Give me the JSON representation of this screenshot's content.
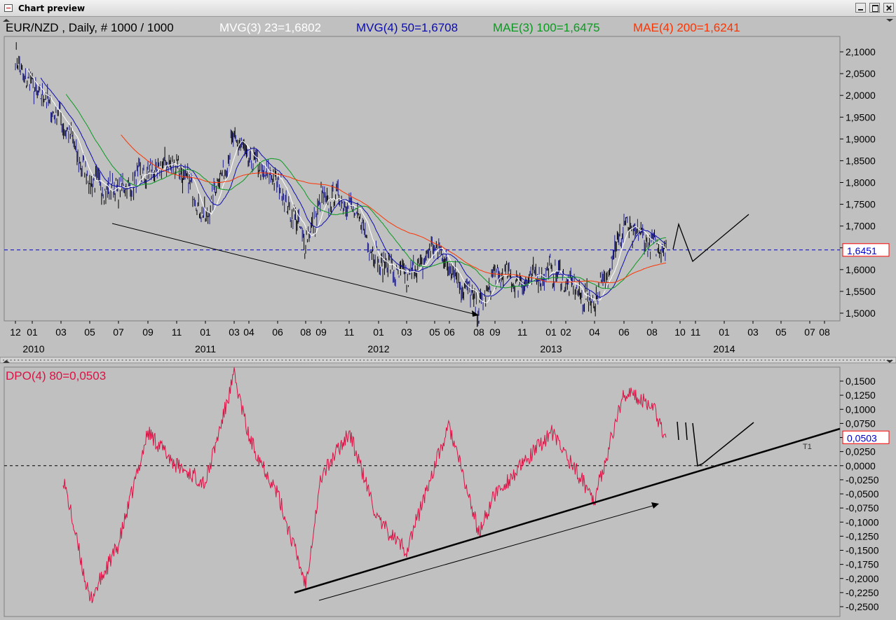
{
  "window": {
    "title": "Chart preview"
  },
  "price_panel": {
    "legend": [
      {
        "text": "EUR/NZD , Daily, # 1000 / 1000",
        "color": "#000000"
      },
      {
        "text": "MVG(3) 23=1,6802",
        "color": "#ffffff"
      },
      {
        "text": "MVG(4) 50=1,6708",
        "color": "#0b0bb0"
      },
      {
        "text": "MAE(3) 100=1,6475",
        "color": "#0a9a20"
      },
      {
        "text": "MAE(4) 200=1,6241",
        "color": "#ff3300"
      }
    ],
    "y_ticks": [
      "2,1000",
      "2,0500",
      "2,0000",
      "1,9500",
      "1,9000",
      "1,8500",
      "1,8000",
      "1,7500",
      "1,7000",
      "1,6500",
      "1,6000",
      "1,5500",
      "1,5000"
    ],
    "current_value": "1,6451",
    "x_month_labels": [
      "12",
      "01",
      "03",
      "05",
      "07",
      "09",
      "11",
      "01",
      "03",
      "04",
      "06",
      "08",
      "09",
      "11",
      "01",
      "03",
      "05",
      "06",
      "08",
      "09",
      "11",
      "01",
      "02",
      "04",
      "06",
      "08",
      "10",
      "11",
      "01",
      "03",
      "05",
      "07",
      "08"
    ],
    "x_year_labels": [
      "2010",
      "2011",
      "2012",
      "2013",
      "2014"
    ]
  },
  "dpo_panel": {
    "legend": {
      "text": "DPO(4) 80=0,0503",
      "color": "#dd1144"
    },
    "y_ticks": [
      "0,1500",
      "0,1250",
      "0,1000",
      "0,0750",
      "0,0500",
      "0,0250",
      "0,0000",
      "-0,0250",
      "-0,0500",
      "-0,0750",
      "-0,1000",
      "-0,1250",
      "-0,1500",
      "-0,1750",
      "-0,2000",
      "-0,2250",
      "-0,2500"
    ],
    "current_value": "0,0503",
    "trendline_label": "T1"
  },
  "chart_data": [
    {
      "type": "line",
      "title": "EUR/NZD , Daily, # 1000 / 1000",
      "ylim": [
        1.49,
        2.13
      ],
      "current_value": 1.6451,
      "series": [
        {
          "name": "EUR/NZD",
          "color": "#000000",
          "x": [
            "2009-12",
            "2010-01",
            "2010-03",
            "2010-05",
            "2010-07",
            "2010-09",
            "2010-11",
            "2011-01",
            "2011-03",
            "2011-04",
            "2011-06",
            "2011-08",
            "2011-09",
            "2011-11",
            "2012-01",
            "2012-03",
            "2012-05",
            "2012-06",
            "2012-08",
            "2012-09",
            "2012-11",
            "2013-01",
            "2013-02",
            "2013-04",
            "2013-06",
            "2013-08",
            "2013-09"
          ],
          "values": [
            2.08,
            2.02,
            1.95,
            1.8,
            1.78,
            1.82,
            1.85,
            1.72,
            1.9,
            1.85,
            1.8,
            1.66,
            1.76,
            1.76,
            1.62,
            1.58,
            1.65,
            1.61,
            1.51,
            1.59,
            1.57,
            1.6,
            1.57,
            1.52,
            1.7,
            1.66,
            1.65
          ]
        },
        {
          "name": "MVG(3) 23=1,6802",
          "color": "#ffffff"
        },
        {
          "name": "MVG(4) 50=1,6708",
          "color": "#0b0bb0"
        },
        {
          "name": "MAE(3) 100=1,6475",
          "color": "#0a9a20"
        },
        {
          "name": "MAE(4) 200=1,6241",
          "color": "#ff3300"
        }
      ]
    },
    {
      "type": "line",
      "title": "DPO(4) 80=0,0503",
      "ylim": [
        -0.26,
        0.16
      ],
      "current_value": 0.0503,
      "series": [
        {
          "name": "DPO(4) 80=0,0503",
          "color": "#dd1144",
          "x": [
            "2010-03",
            "2010-05",
            "2010-07",
            "2010-09",
            "2010-11",
            "2011-01",
            "2011-03",
            "2011-04",
            "2011-06",
            "2011-08",
            "2011-09",
            "2011-11",
            "2012-01",
            "2012-03",
            "2012-05",
            "2012-06",
            "2012-08",
            "2012-09",
            "2012-11",
            "2013-01",
            "2013-02",
            "2013-04",
            "2013-06",
            "2013-08",
            "2013-09"
          ],
          "values": [
            -0.02,
            -0.24,
            -0.14,
            0.06,
            0.0,
            -0.03,
            0.16,
            0.05,
            -0.05,
            -0.21,
            -0.02,
            0.06,
            -0.1,
            -0.15,
            0.0,
            0.07,
            -0.12,
            -0.05,
            0.0,
            0.06,
            0.02,
            -0.06,
            0.13,
            0.11,
            0.05
          ]
        }
      ]
    }
  ]
}
